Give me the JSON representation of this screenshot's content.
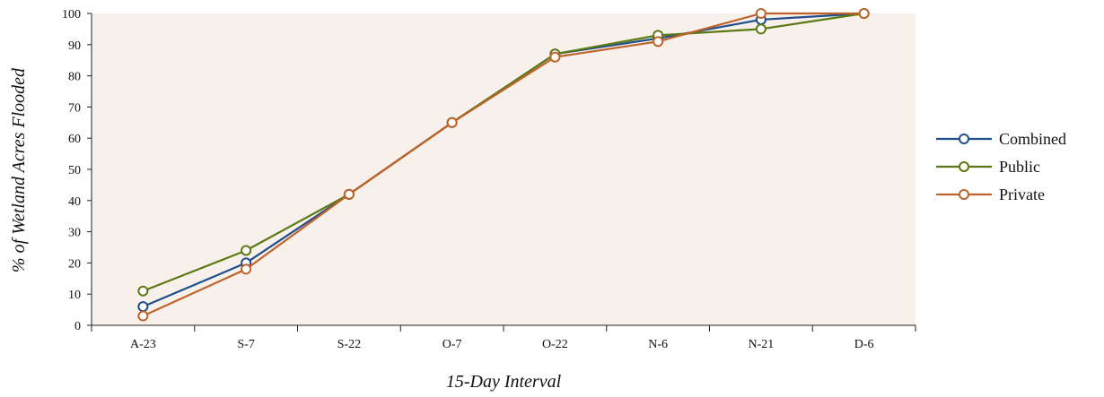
{
  "chart_data": {
    "type": "line",
    "title": "",
    "xlabel": "15-Day Interval",
    "ylabel": "% of Wetland Acres Flooded",
    "categories": [
      "A-23",
      "S-7",
      "S-22",
      "O-7",
      "O-22",
      "N-6",
      "N-21",
      "D-6"
    ],
    "ylim": [
      0,
      100
    ],
    "yticks": [
      0,
      10,
      20,
      30,
      40,
      50,
      60,
      70,
      80,
      90,
      100
    ],
    "grid": false,
    "legend": "right",
    "plot_background": "#f8f0ea",
    "series": [
      {
        "name": "Combined",
        "color": "#1f4e8c",
        "values": [
          6,
          20,
          42,
          65,
          87,
          92,
          98,
          100
        ]
      },
      {
        "name": "Public",
        "color": "#5c7a14",
        "values": [
          11,
          24,
          42,
          65,
          87,
          93,
          95,
          100
        ]
      },
      {
        "name": "Private",
        "color": "#c0632a",
        "values": [
          3,
          18,
          42,
          65,
          86,
          91,
          100,
          100
        ]
      }
    ]
  }
}
